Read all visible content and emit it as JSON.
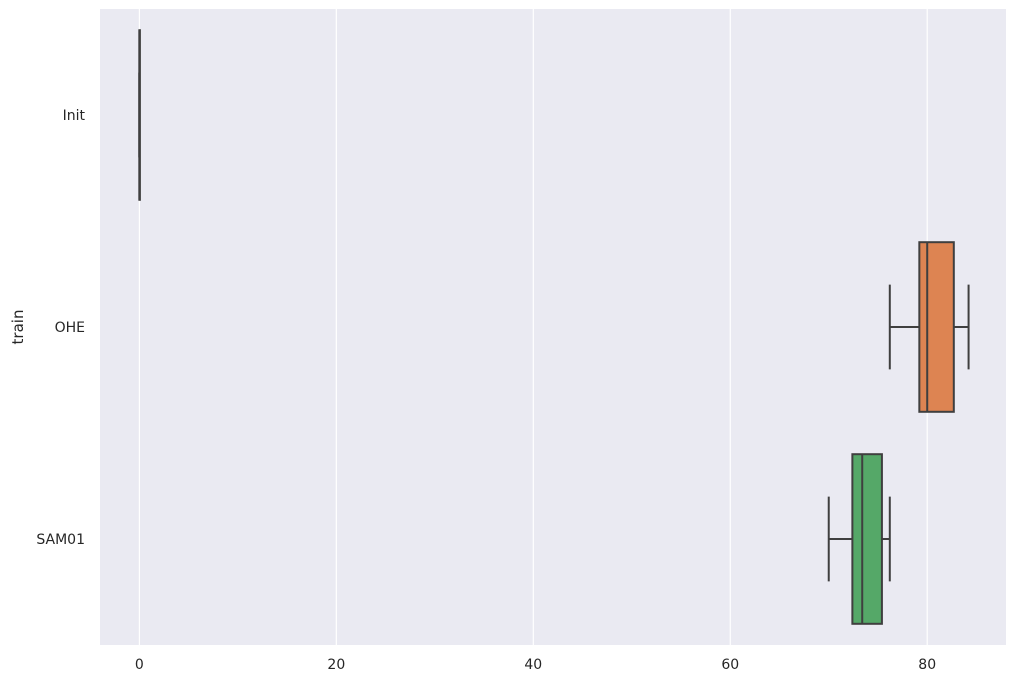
{
  "chart_data": {
    "type": "boxplot",
    "orientation": "horizontal",
    "title": "",
    "xlabel": "",
    "ylabel": "train",
    "xlim": [
      -4,
      88
    ],
    "grid": true,
    "x_ticks": [
      0,
      20,
      40,
      60,
      80
    ],
    "x_tick_labels": [
      "0",
      "20",
      "40",
      "60",
      "80"
    ],
    "categories": [
      "Init",
      "OHE",
      "SAM01"
    ],
    "boxes": [
      {
        "category": "Init",
        "whisker_low": 0,
        "q1": 0,
        "median": 0,
        "q3": 0,
        "whisker_high": 0,
        "color": "#4c72b0"
      },
      {
        "category": "OHE",
        "whisker_low": 76.2,
        "q1": 79.2,
        "median": 80.0,
        "q3": 82.7,
        "whisker_high": 84.2,
        "color": "#dd8452"
      },
      {
        "category": "SAM01",
        "whisker_low": 70.0,
        "q1": 72.4,
        "median": 73.4,
        "q3": 75.4,
        "whisker_high": 76.2,
        "color": "#55a868"
      }
    ],
    "colors": {
      "background": "#eaeaf2",
      "grid": "#ffffff",
      "line": "#3f3f3f"
    }
  }
}
